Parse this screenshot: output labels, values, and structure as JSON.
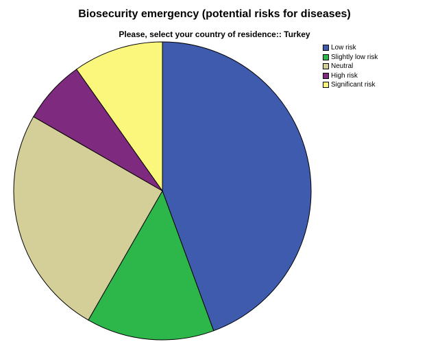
{
  "chart_data": {
    "type": "pie",
    "title": "Biosecurity emergency (potential risks for diseases)",
    "subtitle": "Please, select your country of residence:: Turkey",
    "legend_position": "top-right",
    "slices": [
      {
        "label": "Low risk",
        "value": 44.4,
        "color": "#3F5BAD"
      },
      {
        "label": "Slightly low risk",
        "value": 13.9,
        "color": "#2DB74A"
      },
      {
        "label": "Neutral",
        "value": 25.0,
        "color": "#D4CE99"
      },
      {
        "label": "High risk",
        "value": 6.9,
        "color": "#7D2A7F"
      },
      {
        "label": "Significant risk",
        "value": 9.8,
        "color": "#FBF77D"
      }
    ]
  }
}
